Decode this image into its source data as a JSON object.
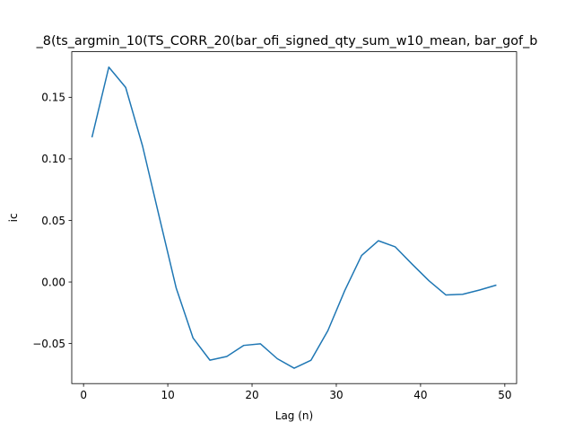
{
  "chart_data": {
    "type": "line",
    "title": "_8(ts_argmin_10(TS_CORR_20(bar_ofi_signed_qty_sum_w10_mean, bar_gof_b",
    "xlabel": "Lag (n)",
    "ylabel": "ic",
    "xlim": [
      -1.4,
      51.4
    ],
    "ylim": [
      -0.0825,
      0.187
    ],
    "xticks": [
      0,
      10,
      20,
      30,
      40,
      50
    ],
    "yticks": [
      -0.05,
      0.0,
      0.05,
      0.1,
      0.15
    ],
    "ytick_labels": [
      "−0.05",
      "0.00",
      "0.05",
      "0.10",
      "0.15"
    ],
    "grid": false,
    "series": [
      {
        "color": "#1f77b4",
        "x": [
          1,
          3,
          5,
          7,
          9,
          11,
          13,
          15,
          17,
          19,
          21,
          23,
          25,
          27,
          29,
          31,
          33,
          35,
          37,
          39,
          41,
          43,
          45,
          47,
          49
        ],
        "y": [
          0.1175,
          0.1745,
          0.158,
          0.1105,
          0.0525,
          -0.005,
          -0.0455,
          -0.0635,
          -0.0605,
          -0.0515,
          -0.0502,
          -0.0623,
          -0.07,
          -0.0635,
          -0.0395,
          -0.007,
          0.0215,
          0.0335,
          0.0285,
          0.0145,
          0.001,
          -0.0105,
          -0.01,
          -0.0065,
          -0.0025
        ]
      }
    ]
  }
}
